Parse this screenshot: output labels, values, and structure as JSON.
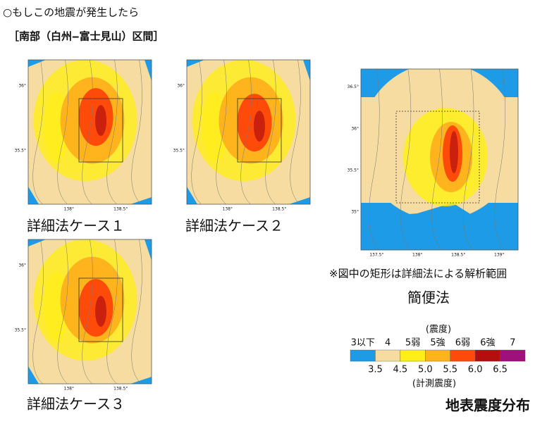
{
  "header": {
    "line1": "○もしこの地震が発生したら",
    "line2": "［南部（白州‒富士見山）区間］"
  },
  "maps": [
    {
      "label": "詳細法ケース１",
      "yticks": [
        "36°",
        "35.5°"
      ],
      "xticks": [
        "138°",
        "138.5°"
      ]
    },
    {
      "label": "詳細法ケース２",
      "yticks": [
        "36°",
        "35.5°"
      ],
      "xticks": [
        "138°",
        "138.5°"
      ]
    },
    {
      "label": "詳細法ケース３",
      "yticks": [
        "36°",
        "35.5°"
      ],
      "xticks": [
        "138°",
        "138.5°"
      ]
    },
    {
      "label": "簡便法",
      "yticks": [
        "36.5°",
        "36°",
        "35.5°",
        "35°"
      ],
      "xticks": [
        "137.5°",
        "138°",
        "138.5°",
        "139°"
      ]
    }
  ],
  "note": "※図中の矩形は詳細法による解析範囲",
  "legend": {
    "title": "(震度)",
    "classes": [
      "3以下",
      "4",
      "5弱",
      "5強",
      "6弱",
      "6強",
      "7"
    ],
    "colors": [
      "#1e9be6",
      "#f6dca0",
      "#ffee1a",
      "#ffb41e",
      "#ff4b0a",
      "#b40f0f",
      "#a0107a"
    ],
    "boundaries": [
      "3.5",
      "4.5",
      "5.0",
      "5.5",
      "6.0",
      "6.5"
    ],
    "unit": "(計測震度)"
  },
  "footer": "地表震度分布"
}
